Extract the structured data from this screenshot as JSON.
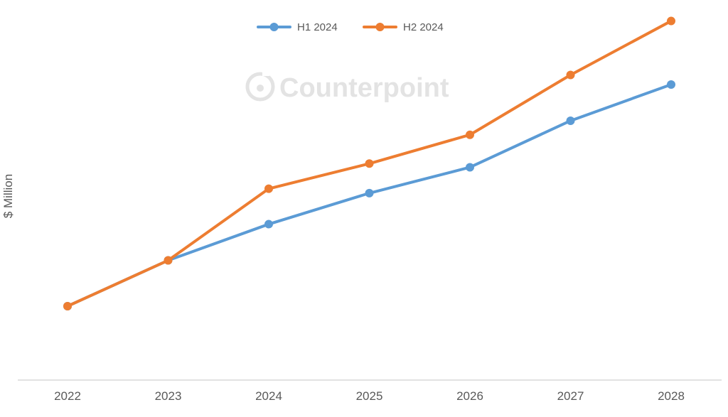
{
  "chart_data": {
    "type": "line",
    "title": "",
    "xlabel": "",
    "ylabel": "$ Million",
    "categories": [
      "2022",
      "2023",
      "2024",
      "2025",
      "2026",
      "2027",
      "2028"
    ],
    "series": [
      {
        "name": "H1 2024",
        "color": "#5B9BD5",
        "values": [
          100,
          162,
          211,
          253,
          288,
          351,
          400
        ]
      },
      {
        "name": "H2 2024",
        "color": "#ED7D31",
        "values": [
          100,
          162,
          259,
          293,
          332,
          413,
          486
        ]
      }
    ],
    "ylim": [
      0,
      500
    ],
    "grid": false,
    "legend_position": "top-center"
  },
  "watermark": {
    "text": "Counterpoint",
    "icon": "counterpoint-logo-icon"
  }
}
